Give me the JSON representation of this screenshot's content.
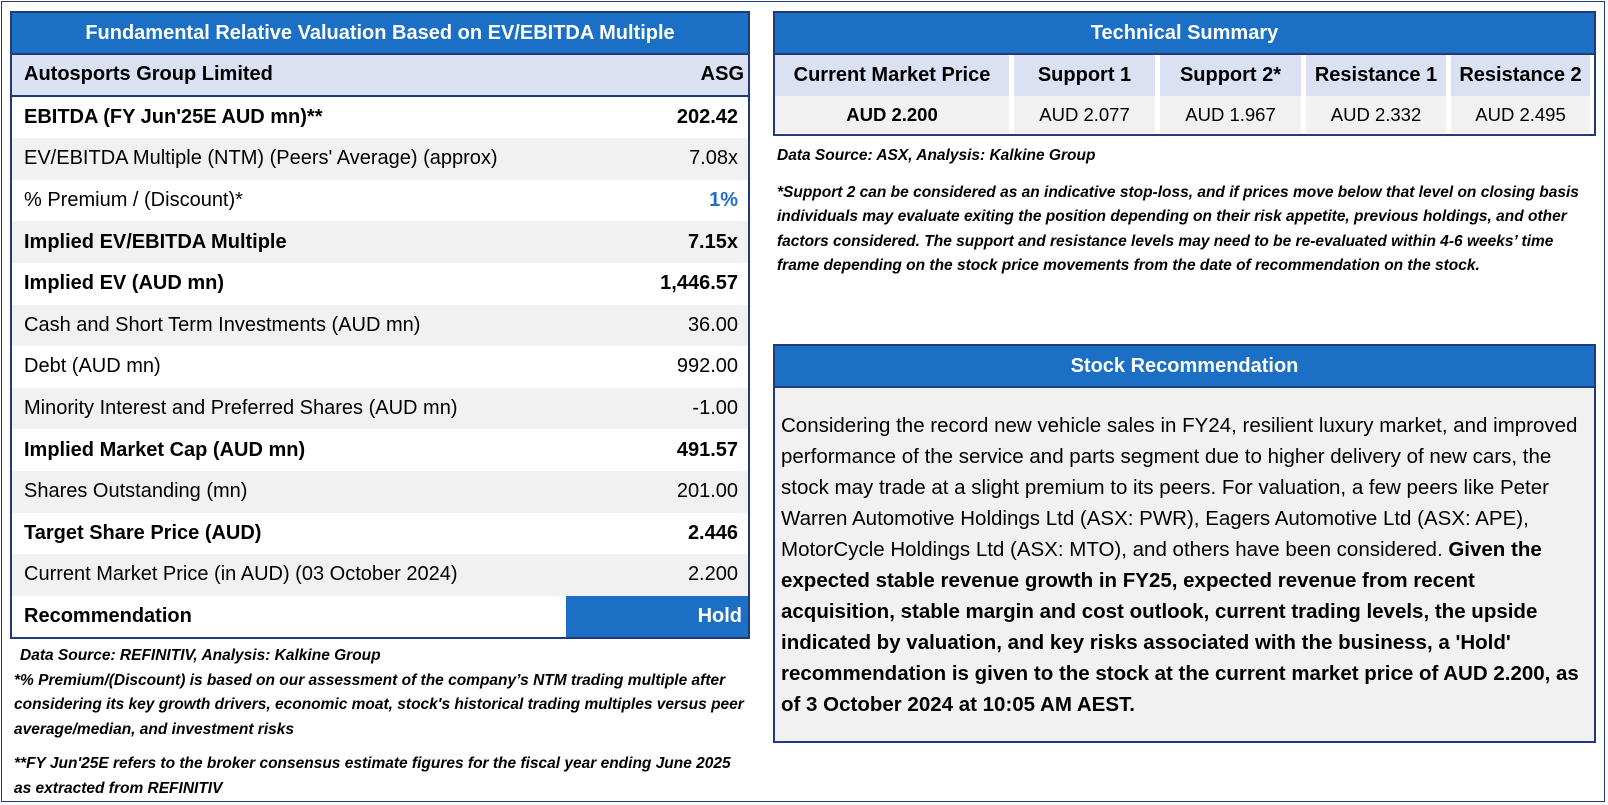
{
  "valuation": {
    "title": "Fundamental Relative Valuation Based on EV/EBITDA Multiple",
    "company": "Autosports Group Limited",
    "ticker": "ASG",
    "rows": [
      {
        "label": "EBITDA (FY Jun'25E AUD mn)**",
        "value": "202.42",
        "bold": true
      },
      {
        "label": "EV/EBITDA Multiple (NTM)  (Peers' Average) (approx)",
        "value": "7.08x",
        "bold": false
      },
      {
        "label": "% Premium / (Discount)*",
        "value": "1%",
        "bold": false
      },
      {
        "label": "Implied EV/EBITDA Multiple",
        "value": "7.15x",
        "bold": true
      },
      {
        "label": "Implied EV (AUD mn)",
        "value": "1,446.57",
        "bold": true
      },
      {
        "label": "Cash and Short Term Investments (AUD mn)",
        "value": "36.00",
        "bold": false
      },
      {
        "label": "Debt (AUD mn)",
        "value": "992.00",
        "bold": false
      },
      {
        "label": "Minority Interest and Preferred Shares (AUD mn)",
        "value": "-1.00",
        "bold": false
      },
      {
        "label": "Implied Market Cap (AUD mn)",
        "value": "491.57",
        "bold": true
      },
      {
        "label": "Shares Outstanding (mn)",
        "value": "201.00",
        "bold": false
      },
      {
        "label": "Target Share Price (AUD)",
        "value": "2.446",
        "bold": true
      },
      {
        "label": "Current Market Price (in AUD) (03 October 2024)",
        "value": "2.200",
        "bold": false
      }
    ],
    "recommendation_label": "Recommendation",
    "recommendation_value": "Hold",
    "premium_color": "#1f6fc4",
    "header_color": "#1b6fc4"
  },
  "left_notes": {
    "source": "Data Source: REFINITIV, Analysis: Kalkine Group",
    "note1": "*% Premium/(Discount) is based on our assessment of the company’s NTM trading multiple after considering its key growth drivers, economic moat, stock's historical trading multiples versus peer average/median, and investment risks",
    "note2": "**FY Jun'25E refers to the broker consensus estimate figures for the fiscal year ending June 2025 as extracted from REFINITIV"
  },
  "technical": {
    "title": "Technical Summary",
    "columns": [
      {
        "header": "Current Market Price",
        "value": "AUD 2.200"
      },
      {
        "header": "Support 1",
        "value": "AUD 2.077"
      },
      {
        "header": "Support 2*",
        "value": "AUD 1.967"
      },
      {
        "header": "Resistance 1",
        "value": "AUD 2.332"
      },
      {
        "header": "Resistance 2",
        "value": "AUD 2.495"
      }
    ],
    "source": "Data Source: ASX, Analysis: Kalkine Group",
    "note": "*Support 2 can be considered as an indicative stop-loss, and if prices move below that level on closing basis individuals may evaluate exiting the position depending on their risk appetite, previous holdings, and other factors considered. The support and resistance levels may need to be re-evaluated within 4-6 weeks’ time frame depending on the stock price movements from the date of recommendation on the stock."
  },
  "stock_recommendation": {
    "title": "Stock Recommendation",
    "text_regular": "Considering the record new vehicle sales in FY24, resilient luxury market, and improved performance of the service and parts segment due to higher delivery of new cars, the stock may trade at a slight premium to its peers. For valuation, a few peers like Peter Warren Automotive Holdings Ltd (ASX: PWR), Eagers Automotive Ltd (ASX: APE), MotorCycle Holdings Ltd (ASX: MTO), and others have been considered. ",
    "text_bold": "Given the expected stable revenue growth in FY25, expected revenue from recent acquisition, stable margin and cost outlook, current trading levels, the upside indicated by valuation, and key risks associated with the business, a 'Hold' recommendation is given to the stock at the current market price of AUD 2.200, as of 3 October 2024 at 10:05 AM AEST."
  }
}
